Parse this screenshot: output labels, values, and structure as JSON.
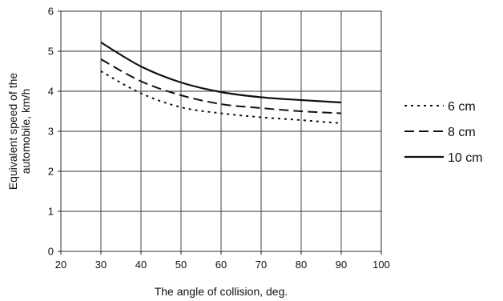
{
  "chart_data": {
    "type": "line",
    "title": "",
    "xlabel": "The angle of collision, deg.",
    "ylabel": "Equivalent speed of the automobile, km/h",
    "xlim": [
      20,
      100
    ],
    "ylim": [
      0,
      6
    ],
    "x_ticks": [
      20,
      30,
      40,
      50,
      60,
      70,
      80,
      90,
      100
    ],
    "y_ticks": [
      0,
      1,
      2,
      3,
      4,
      5,
      6
    ],
    "grid": true,
    "legend_position": "right",
    "x": [
      30,
      40,
      50,
      60,
      70,
      80,
      90
    ],
    "series": [
      {
        "name": "6 cm",
        "style": "dotted",
        "color": "#111111",
        "values": [
          4.5,
          3.95,
          3.6,
          3.45,
          3.35,
          3.28,
          3.2
        ]
      },
      {
        "name": "8 cm",
        "style": "dashed",
        "color": "#111111",
        "values": [
          4.8,
          4.25,
          3.9,
          3.68,
          3.58,
          3.5,
          3.45
        ]
      },
      {
        "name": "10 cm",
        "style": "solid",
        "color": "#111111",
        "values": [
          5.22,
          4.62,
          4.22,
          3.98,
          3.85,
          3.78,
          3.72
        ]
      }
    ]
  }
}
